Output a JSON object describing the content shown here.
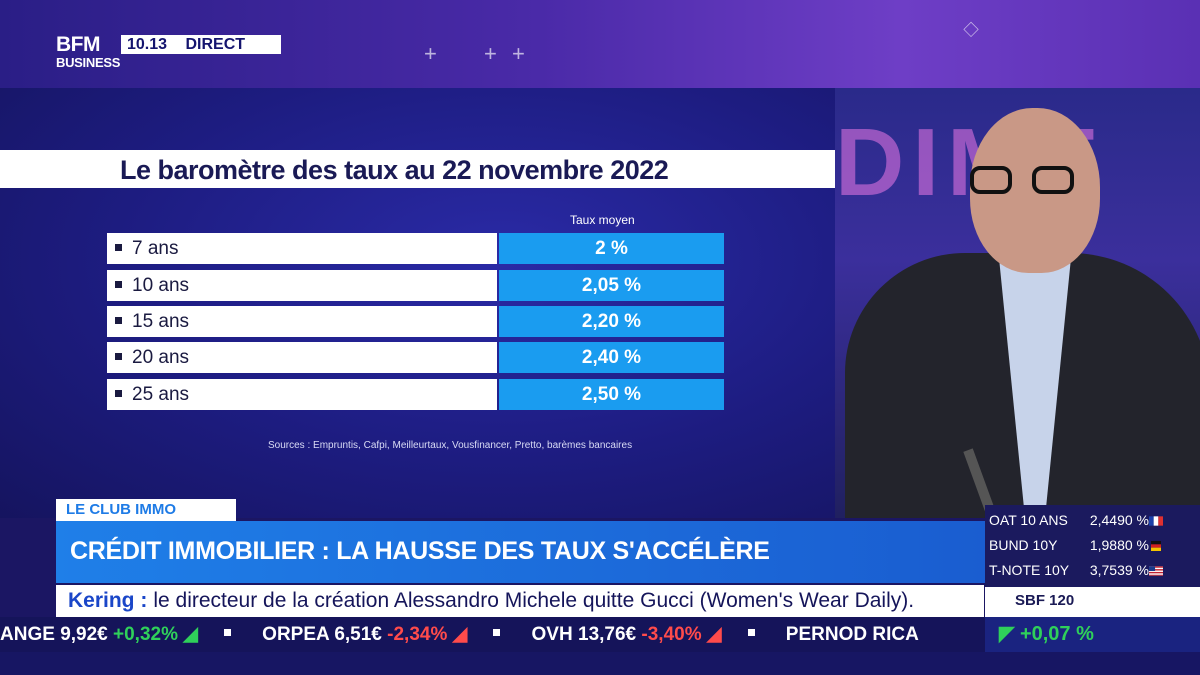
{
  "channel": {
    "logo_line1": "BFM",
    "logo_line2": "BUSINESS",
    "time": "10.13",
    "live_label": "DIRECT"
  },
  "graphic": {
    "title": "Le baromètre des taux au 22 novembre 2022",
    "column_header": "Taux moyen",
    "rows": [
      {
        "duration": "7 ans",
        "rate": "2 %"
      },
      {
        "duration": "10 ans",
        "rate": "2,05 %"
      },
      {
        "duration": "15 ans",
        "rate": "2,20 %"
      },
      {
        "duration": "20 ans",
        "rate": "2,40 %"
      },
      {
        "duration": "25 ans",
        "rate": "2,50 %"
      }
    ],
    "sources": "Sources : Empruntis, Cafpi, Meilleurtaux, Vousfinancer, Pretto, barèmes bancaires"
  },
  "lower_third": {
    "show_tag": "LE CLUB IMMO",
    "headline": "CRÉDIT IMMOBILIER : LA HAUSSE DES TAUX S'ACCÉLÈRE",
    "news_brand": "Kering :",
    "news_text": "le directeur de la création Alessandro Michele quitte Gucci (Women's Wear Daily)."
  },
  "rates_box": [
    {
      "name": "OAT 10 ANS",
      "value": "2,4490 %",
      "flag": "france-flag"
    },
    {
      "name": "BUND 10Y",
      "value": "1,9880 %",
      "flag": "germany-flag"
    },
    {
      "name": "T-NOTE 10Y",
      "value": "3,7539 %",
      "flag": "usa-flag"
    }
  ],
  "index_label": "SBF 120",
  "ticker": [
    {
      "name": "ANGE",
      "price": "9,92€",
      "change": "+0,32%",
      "dir": "up"
    },
    {
      "name": "ORPEA",
      "price": "6,51€",
      "change": "-2,34%",
      "dir": "down"
    },
    {
      "name": "OVH",
      "price": "13,76€",
      "change": "-3,40%",
      "dir": "down"
    },
    {
      "name": "PERNOD RICA",
      "price": "",
      "change": "",
      "dir": ""
    }
  ],
  "index_change": "+0,07 %",
  "colors": {
    "accent_blue": "#1a9cf0",
    "headline_blue": "#1f7fe8",
    "up_green": "#2fd05a",
    "down_red": "#ff4b4b"
  }
}
